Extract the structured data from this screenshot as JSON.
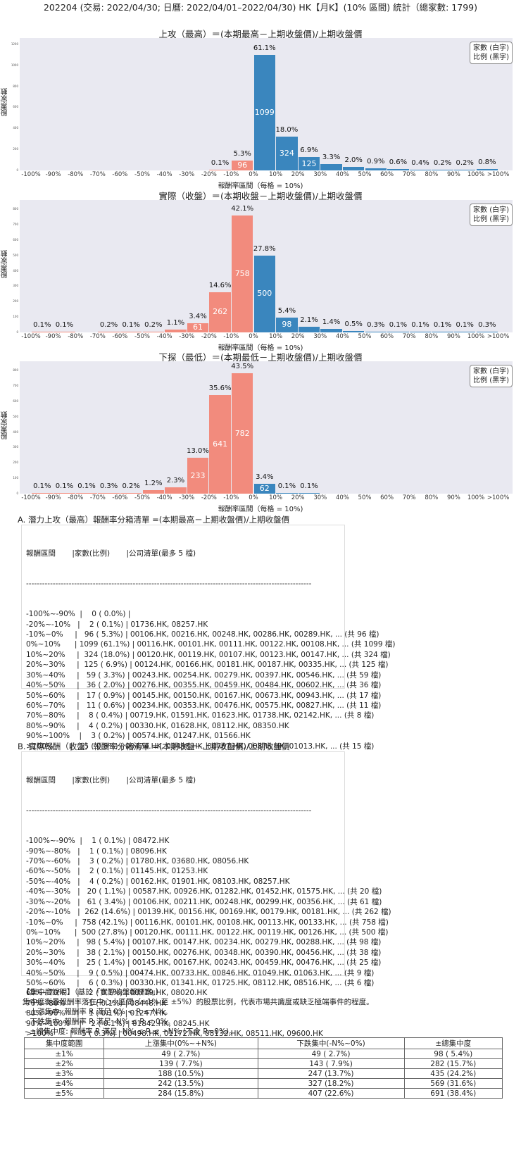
{
  "header": {
    "title": "202204 (交易: 2022/04/30; 日曆: 2022/04/01–2022/04/30) HK【月K】(10% 區間) 統計（總家數: 1799)"
  },
  "common": {
    "ylabel": "股票家數",
    "xlabel": "報酬率區間（每格 = 10%)",
    "legend_line1": "家數 (白字)",
    "legend_line2": "比例 (黑字)"
  },
  "chart_data": [
    {
      "type": "bar",
      "title": "上攻（最高）＝(本期最高－上期收盤價)/上期收盤價",
      "xlabel": "報酬率區間（每格 = 10%)",
      "ylabel": "股票家數",
      "ylim": [
        0,
        1260
      ],
      "yticks": [
        0,
        200,
        400,
        600,
        800,
        1000,
        1200
      ],
      "categories": [
        "-100%",
        "-90%",
        "-80%",
        "-70%",
        "-60%",
        "-50%",
        "-40%",
        "-30%",
        "-20%",
        "-10%",
        "0%",
        "10%",
        "20%",
        "30%",
        "40%",
        "50%",
        "60%",
        "70%",
        "80%",
        "90%",
        "100%",
        ">100%"
      ],
      "values": [
        0,
        0,
        0,
        0,
        0,
        0,
        0,
        0,
        2,
        96,
        1099,
        324,
        125,
        59,
        36,
        17,
        11,
        8,
        4,
        3,
        15
      ],
      "percents": [
        "",
        "",
        "",
        "",
        "",
        "",
        "",
        "",
        "0.1%",
        "5.3%",
        "61.1%",
        "18.0%",
        "6.9%",
        "3.3%",
        "2.0%",
        "0.9%",
        "0.6%",
        "0.4%",
        "0.2%",
        "0.2%",
        "0.8%"
      ]
    },
    {
      "type": "bar",
      "title": "實際（收盤）＝(本期收盤－上期收盤價)/上期收盤價",
      "xlabel": "報酬率區間（每格 = 10%)",
      "ylabel": "股票家數",
      "ylim": [
        0,
        860
      ],
      "yticks": [
        0,
        100,
        200,
        300,
        400,
        500,
        600,
        700,
        800
      ],
      "categories": [
        "-100%",
        "-90%",
        "-80%",
        "-70%",
        "-60%",
        "-50%",
        "-40%",
        "-30%",
        "-20%",
        "-10%",
        "0%",
        "10%",
        "20%",
        "30%",
        "40%",
        "50%",
        "60%",
        "70%",
        "80%",
        "90%",
        "100%",
        ">100%"
      ],
      "values": [
        1,
        1,
        0,
        3,
        2,
        4,
        20,
        61,
        262,
        758,
        500,
        98,
        38,
        25,
        9,
        6,
        2,
        1,
        1,
        2,
        5
      ],
      "percents": [
        "0.1%",
        "0.1%",
        "",
        "0.2%",
        "0.1%",
        "0.2%",
        "1.1%",
        "3.4%",
        "14.6%",
        "42.1%",
        "27.8%",
        "5.4%",
        "2.1%",
        "1.4%",
        "0.5%",
        "0.3%",
        "0.1%",
        "0.1%",
        "0.1%",
        "0.1%",
        "0.3%"
      ]
    },
    {
      "type": "bar",
      "title": "下探（最低）＝(本期最低－上期收盤價)/上期收盤價",
      "xlabel": "報酬率區間（每格 = 10%)",
      "ylabel": "股票家數",
      "ylim": [
        0,
        860
      ],
      "yticks": [
        0,
        100,
        200,
        300,
        400,
        500,
        600,
        700,
        800
      ],
      "categories": [
        "-100%",
        "-90%",
        "-80%",
        "-70%",
        "-60%",
        "-50%",
        "-40%",
        "-30%",
        "-20%",
        "-10%",
        "0%",
        "10%",
        "20%",
        "30%",
        "40%",
        "50%",
        "60%",
        "70%",
        "80%",
        "90%",
        "100%",
        ">100%"
      ],
      "values": [
        1,
        1,
        1,
        6,
        3,
        22,
        41,
        233,
        641,
        782,
        62,
        1,
        1,
        0,
        0,
        0,
        0,
        0,
        0,
        0,
        0
      ],
      "percents": [
        "0.1%",
        "0.1%",
        "0.1%",
        "0.3%",
        "0.2%",
        "1.2%",
        "2.3%",
        "13.0%",
        "35.6%",
        "43.5%",
        "3.4%",
        "0.1%",
        "0.1%",
        "",
        "",
        "",
        "",
        "",
        "",
        "",
        ""
      ]
    }
  ],
  "section_a": {
    "title": "A. 潛力上攻（最高）報酬率分箱清單 =(本期最高－上期收盤價)/上期收盤價",
    "header": "報酬區間       |家數(比例)       |公司清單(最多 5 檔)",
    "separator": "-----------------------------------------------------------------------------------------------------------",
    "rows": [
      "-100%~-90%  |    0 ( 0.0%) |",
      "-20%~-10%   |    2 ( 0.1%) | 01736.HK, 08257.HK",
      "-10%~0%     |   96 ( 5.3%) | 00106.HK, 00216.HK, 00248.HK, 00286.HK, 00289.HK, ... (共 96 檔)",
      "0%~10%      | 1099 (61.1%) | 00116.HK, 00101.HK, 00111.HK, 00122.HK, 00108.HK, ... (共 1099 檔)",
      "10%~20%     |  324 (18.0%) | 00120.HK, 00119.HK, 00107.HK, 00123.HK, 00147.HK, ... (共 324 檔)",
      "20%~30%     |  125 ( 6.9%) | 00124.HK, 00166.HK, 00181.HK, 00187.HK, 00335.HK, ... (共 125 檔)",
      "30%~40%     |   59 ( 3.3%) | 00243.HK, 00254.HK, 00279.HK, 00397.HK, 00546.HK, ... (共 59 檔)",
      "40%~50%     |   36 ( 2.0%) | 00276.HK, 00355.HK, 00459.HK, 00484.HK, 00602.HK, ... (共 36 檔)",
      "50%~60%     |   17 ( 0.9%) | 00145.HK, 00150.HK, 00167.HK, 00673.HK, 00943.HK, ... (共 17 檔)",
      "60%~70%     |   11 ( 0.6%) | 00234.HK, 00353.HK, 00476.HK, 00575.HK, 00827.HK, ... (共 11 檔)",
      "70%~80%     |    8 ( 0.4%) | 00719.HK, 01591.HK, 01623.HK, 01738.HK, 02142.HK, ... (共 8 檔)",
      "80%~90%     |    4 ( 0.2%) | 00330.HK, 01628.HK, 08112.HK, 08350.HK",
      "90%~100%    |    3 ( 0.2%) | 00574.HK, 01247.HK, 01566.HK",
      ">100%       |   15 ( 0.8%) | 00474.HK, 00498.HK, 00767.HK, 00876.HK, 01013.HK, ... (共 15 檔)"
    ]
  },
  "section_b": {
    "title": "B. 實際報酬（收盤）報酬率分箱清單 =(本期收盤－上期收盤價)/上期收盤價",
    "header": "報酬區間       |家數(比例)       |公司清單(最多 5 檔)",
    "separator": "-----------------------------------------------------------------------------------------------------------",
    "rows": [
      "-100%~-90%  |    1 ( 0.1%) | 08472.HK",
      "-90%~-80%   |    1 ( 0.1%) | 08096.HK",
      "-70%~-60%   |    3 ( 0.2%) | 01780.HK, 03680.HK, 08056.HK",
      "-60%~-50%   |    2 ( 0.1%) | 01145.HK, 01253.HK",
      "-50%~-40%   |    4 ( 0.2%) | 00162.HK, 01901.HK, 08103.HK, 08257.HK",
      "-40%~-30%   |   20 ( 1.1%) | 00587.HK, 00926.HK, 01282.HK, 01452.HK, 01575.HK, ... (共 20 檔)",
      "-30%~-20%   |   61 ( 3.4%) | 00106.HK, 00211.HK, 00248.HK, 00299.HK, 00356.HK, ... (共 61 檔)",
      "-20%~-10%   |  262 (14.6%) | 00139.HK, 00156.HK, 00169.HK, 00179.HK, 00181.HK, ... (共 262 檔)",
      "-10%~0%     |  758 (42.1%) | 00116.HK, 00101.HK, 00108.HK, 00113.HK, 00133.HK, ... (共 758 檔)",
      "0%~10%      |  500 (27.8%) | 00120.HK, 00111.HK, 00122.HK, 00119.HK, 00126.HK, ... (共 500 檔)",
      "10%~20%     |   98 ( 5.4%) | 00107.HK, 00147.HK, 00234.HK, 00279.HK, 00288.HK, ... (共 98 檔)",
      "20%~30%     |   38 ( 2.1%) | 00150.HK, 00276.HK, 00348.HK, 00390.HK, 00456.HK, ... (共 38 檔)",
      "30%~40%     |   25 ( 1.4%) | 00145.HK, 00167.HK, 00243.HK, 00459.HK, 00476.HK, ... (共 25 檔)",
      "40%~50%     |    9 ( 0.5%) | 00474.HK, 00733.HK, 00846.HK, 01049.HK, 01063.HK, ... (共 9 檔)",
      "50%~60%     |    6 ( 0.3%) | 00330.HK, 01341.HK, 01725.HK, 08112.HK, 08516.HK, ... (共 6 檔)",
      "60%~70%     |    2 ( 0.1%) | 00719.HK, 08020.HK",
      "70%~80%     |    1 ( 0.1%) | 08448.HK",
      "80%~90%     |    1 ( 0.1%) | 01247.HK",
      "90%~100%    |    2 ( 0.1%) | 01842.HK, 08245.HK",
      ">100%       |    5 ( 0.3%) | 00498.HK, 01172.HK, 08132.HK, 08511.HK, 09600.HK"
    ]
  },
  "concentration": {
    "title": "【集中度說明】（基於「實際收盤報酬率」）",
    "desc": "集中度衡量報酬率落在中心小區間（±1% 至 ±5%）的股票比例，代表市場共識度或缺乏極端事件的程度。",
    "bullets": [
      " - 上漲集中: 報酬率 R 滿足 0% < R ≤ N%。",
      " - 下跌集中: 報酬率 R 滿足 -N% ≤ R < 0%。",
      " - ±總集中度: 報酬率 R 滿足 -N% ≤ R ≤ +N% (不含 R=0%)。"
    ],
    "table": {
      "headers": [
        "集中度範圍",
        "上漲集中(0%~+N%)",
        "下跌集中(-N%~0%)",
        "±總集中度"
      ],
      "rows": [
        [
          "±1%",
          "49 ( 2.7%)",
          "49 ( 2.7%)",
          "98 ( 5.4%)"
        ],
        [
          "±2%",
          "139 ( 7.7%)",
          "143 ( 7.9%)",
          "282 (15.7%)"
        ],
        [
          "±3%",
          "188 (10.5%)",
          "247 (13.7%)",
          "435 (24.2%)"
        ],
        [
          "±4%",
          "242 (13.5%)",
          "327 (18.2%)",
          "569 (31.6%)"
        ],
        [
          "±5%",
          "284 (15.8%)",
          "407 (22.6%)",
          "691 (38.4%)"
        ]
      ]
    }
  },
  "colors": {
    "negative": "#f28b7d",
    "positive": "#3a86be",
    "plot_bg": "#e9e9f1"
  }
}
